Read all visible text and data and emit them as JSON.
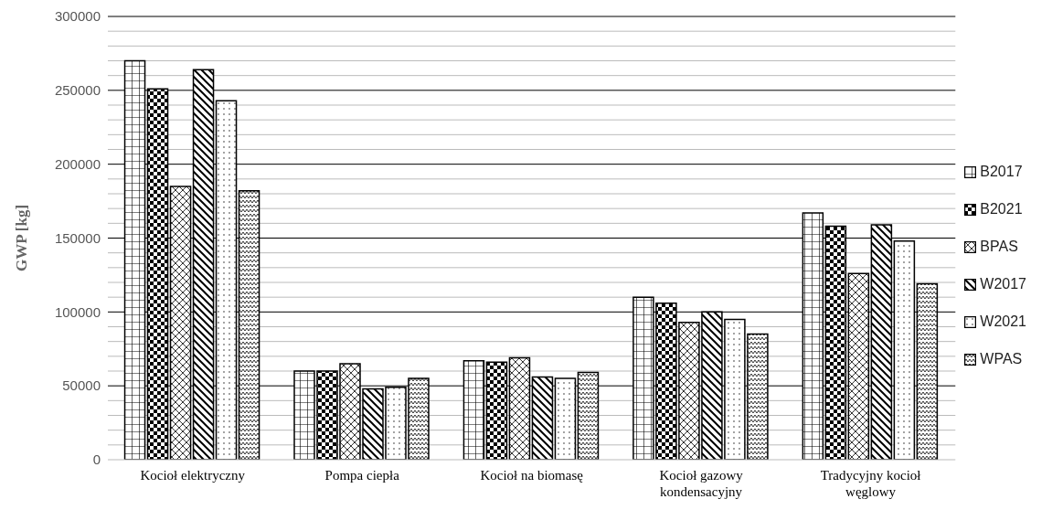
{
  "chart_data": {
    "type": "bar",
    "ylabel": "GWP [kg]",
    "categories": [
      "Kocioł elektryczny",
      "Pompa ciepła",
      "Kocioł na biomasę",
      "Kocioł gazowy kondensacyjny",
      "Tradycyjny kocioł węglowy"
    ],
    "series": [
      {
        "name": "B2017",
        "color": "#000000",
        "values": [
          270000,
          60000,
          67000,
          110000,
          167000
        ]
      },
      {
        "name": "B2021",
        "color": "#000000",
        "values": [
          251000,
          60000,
          66000,
          106000,
          158000
        ]
      },
      {
        "name": "BPAS",
        "color": "#000000",
        "values": [
          185000,
          65000,
          69000,
          93000,
          126000
        ]
      },
      {
        "name": "W2017",
        "color": "#000000",
        "values": [
          264000,
          48000,
          56000,
          100000,
          159000
        ]
      },
      {
        "name": "W2021",
        "color": "#000000",
        "values": [
          243000,
          49000,
          55000,
          95000,
          148000
        ]
      },
      {
        "name": "WPAS",
        "color": "#000000",
        "values": [
          182000,
          55000,
          59000,
          85000,
          119000
        ]
      }
    ],
    "ylim": [
      0,
      300000
    ],
    "yticks": [
      0,
      {
        "value": 10000,
        "label": null
      },
      {
        "value": 20000,
        "label": null
      },
      {
        "value": 30000,
        "label": null
      },
      {
        "value": 40000,
        "label": null
      },
      50000,
      {
        "value": 60000,
        "label": null
      },
      {
        "value": 70000,
        "label": null
      },
      {
        "value": 80000,
        "label": null
      },
      {
        "value": 90000,
        "label": null
      },
      100000,
      {
        "value": 110000,
        "label": null
      },
      {
        "value": 120000,
        "label": null
      },
      {
        "value": 130000,
        "label": null
      },
      {
        "value": 140000,
        "label": null
      },
      150000,
      {
        "value": 160000,
        "label": null
      },
      {
        "value": 170000,
        "label": null
      },
      {
        "value": 180000,
        "label": null
      },
      {
        "value": 190000,
        "label": null
      },
      200000,
      {
        "value": 210000,
        "label": null
      },
      {
        "value": 220000,
        "label": null
      },
      {
        "value": 230000,
        "label": null
      },
      {
        "value": 240000,
        "label": null
      },
      250000,
      {
        "value": 260000,
        "label": null
      },
      {
        "value": 270000,
        "label": null
      },
      {
        "value": 280000,
        "label": null
      },
      {
        "value": 290000,
        "label": null
      },
      300000
    ],
    "grid": "y",
    "legend": "right"
  }
}
